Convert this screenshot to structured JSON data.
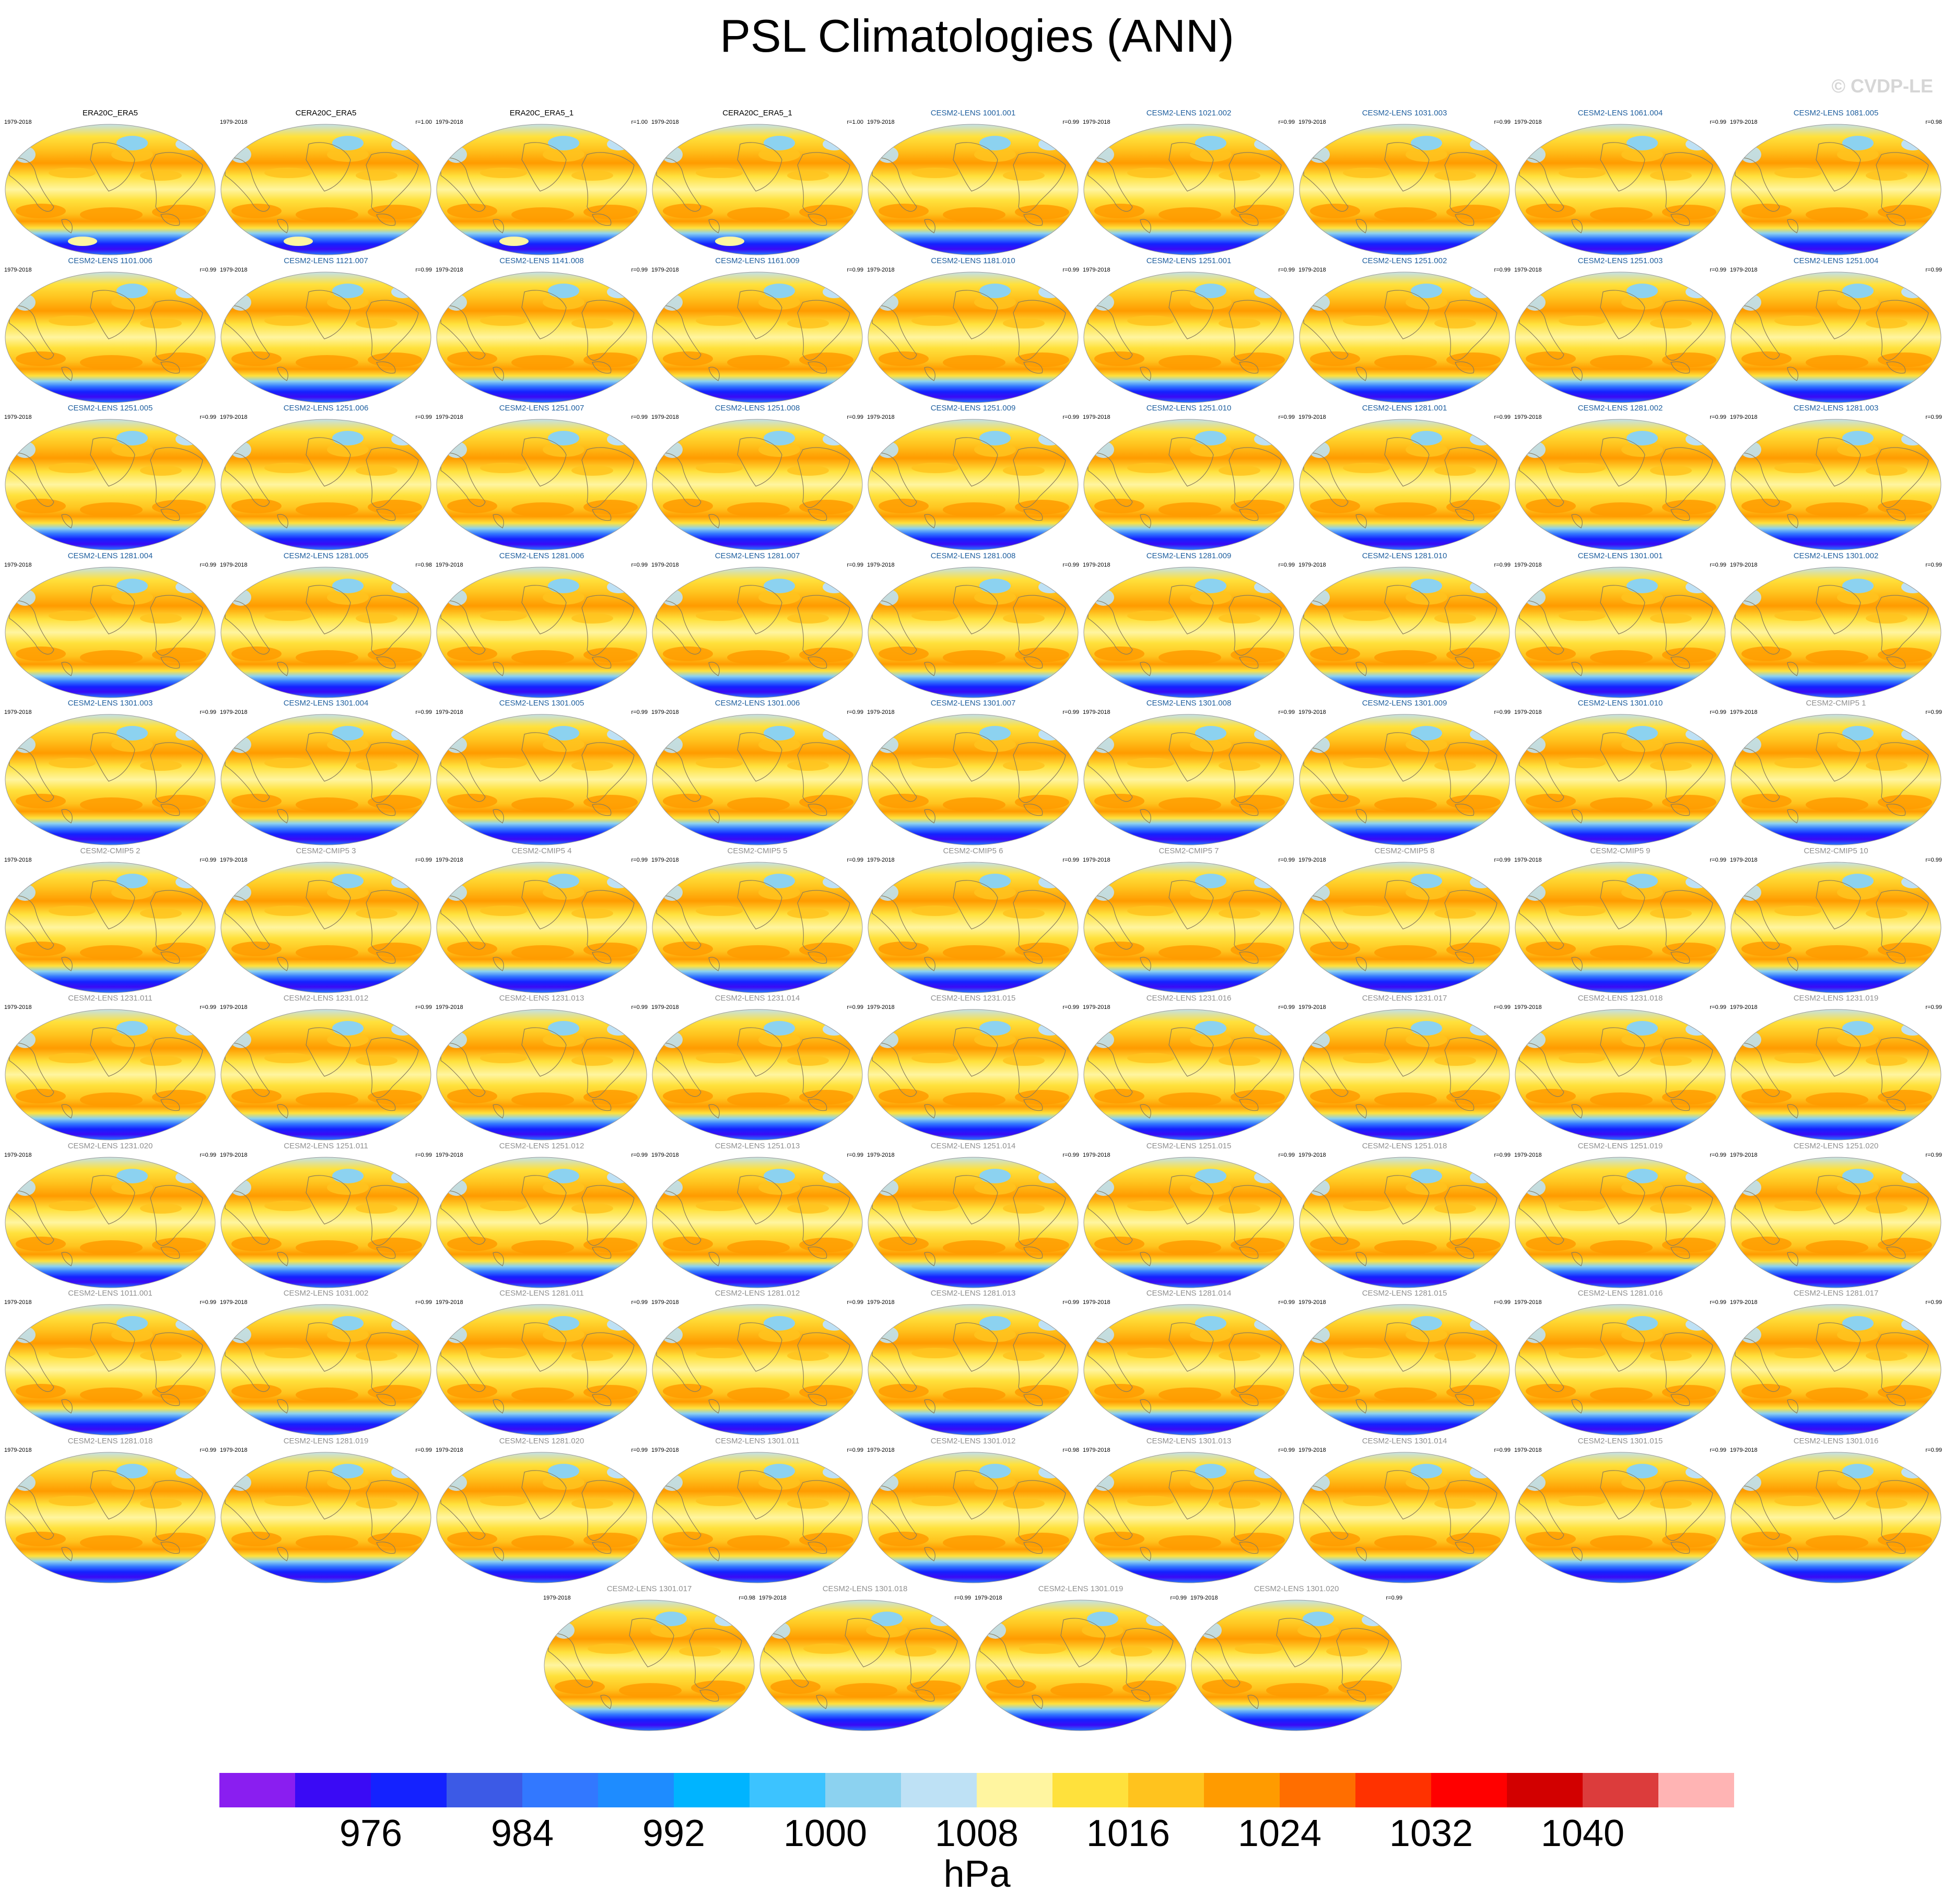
{
  "title": "PSL Climatologies (ANN)",
  "watermark": "© CVDP-LE",
  "period": "1979-2018",
  "colors": {
    "obs_title": "#000000",
    "lens_title": "#1f5f9f",
    "cmip_title": "#909090",
    "land_line": "#8b7d5a",
    "ocean_south": "#2b4bff",
    "ocean_deep": "#1a1aff"
  },
  "panels": [
    {
      "name": "ERA20C_ERA5",
      "corr": "",
      "group": "obs"
    },
    {
      "name": "CERA20C_ERA5",
      "corr": "r=1.00",
      "group": "obs"
    },
    {
      "name": "ERA20C_ERA5_1",
      "corr": "r=1.00",
      "group": "obs"
    },
    {
      "name": "CERA20C_ERA5_1",
      "corr": "r=1.00",
      "group": "obs"
    },
    {
      "name": "CESM2-LENS 1001.001",
      "corr": "r=0.99",
      "group": "lens"
    },
    {
      "name": "CESM2-LENS 1021.002",
      "corr": "r=0.99",
      "group": "lens"
    },
    {
      "name": "CESM2-LENS 1031.003",
      "corr": "r=0.99",
      "group": "lens"
    },
    {
      "name": "CESM2-LENS 1061.004",
      "corr": "r=0.99",
      "group": "lens"
    },
    {
      "name": "CESM2-LENS 1081.005",
      "corr": "r=0.98",
      "group": "lens"
    },
    {
      "name": "CESM2-LENS 1101.006",
      "corr": "r=0.99",
      "group": "lens"
    },
    {
      "name": "CESM2-LENS 1121.007",
      "corr": "r=0.99",
      "group": "lens"
    },
    {
      "name": "CESM2-LENS 1141.008",
      "corr": "r=0.99",
      "group": "lens"
    },
    {
      "name": "CESM2-LENS 1161.009",
      "corr": "r=0.99",
      "group": "lens"
    },
    {
      "name": "CESM2-LENS 1181.010",
      "corr": "r=0.99",
      "group": "lens"
    },
    {
      "name": "CESM2-LENS 1251.001",
      "corr": "r=0.99",
      "group": "lens"
    },
    {
      "name": "CESM2-LENS 1251.002",
      "corr": "r=0.99",
      "group": "lens"
    },
    {
      "name": "CESM2-LENS 1251.003",
      "corr": "r=0.99",
      "group": "lens"
    },
    {
      "name": "CESM2-LENS 1251.004",
      "corr": "r=0.99",
      "group": "lens"
    },
    {
      "name": "CESM2-LENS 1251.005",
      "corr": "r=0.99",
      "group": "lens"
    },
    {
      "name": "CESM2-LENS 1251.006",
      "corr": "r=0.99",
      "group": "lens"
    },
    {
      "name": "CESM2-LENS 1251.007",
      "corr": "r=0.99",
      "group": "lens"
    },
    {
      "name": "CESM2-LENS 1251.008",
      "corr": "r=0.99",
      "group": "lens"
    },
    {
      "name": "CESM2-LENS 1251.009",
      "corr": "r=0.99",
      "group": "lens"
    },
    {
      "name": "CESM2-LENS 1251.010",
      "corr": "r=0.99",
      "group": "lens"
    },
    {
      "name": "CESM2-LENS 1281.001",
      "corr": "r=0.99",
      "group": "lens"
    },
    {
      "name": "CESM2-LENS 1281.002",
      "corr": "r=0.99",
      "group": "lens"
    },
    {
      "name": "CESM2-LENS 1281.003",
      "corr": "r=0.99",
      "group": "lens"
    },
    {
      "name": "CESM2-LENS 1281.004",
      "corr": "r=0.99",
      "group": "lens"
    },
    {
      "name": "CESM2-LENS 1281.005",
      "corr": "r=0.98",
      "group": "lens"
    },
    {
      "name": "CESM2-LENS 1281.006",
      "corr": "r=0.99",
      "group": "lens"
    },
    {
      "name": "CESM2-LENS 1281.007",
      "corr": "r=0.99",
      "group": "lens"
    },
    {
      "name": "CESM2-LENS 1281.008",
      "corr": "r=0.99",
      "group": "lens"
    },
    {
      "name": "CESM2-LENS 1281.009",
      "corr": "r=0.99",
      "group": "lens"
    },
    {
      "name": "CESM2-LENS 1281.010",
      "corr": "r=0.99",
      "group": "lens"
    },
    {
      "name": "CESM2-LENS 1301.001",
      "corr": "r=0.99",
      "group": "lens"
    },
    {
      "name": "CESM2-LENS 1301.002",
      "corr": "r=0.99",
      "group": "lens"
    },
    {
      "name": "CESM2-LENS 1301.003",
      "corr": "r=0.99",
      "group": "lens"
    },
    {
      "name": "CESM2-LENS 1301.004",
      "corr": "r=0.99",
      "group": "lens"
    },
    {
      "name": "CESM2-LENS 1301.005",
      "corr": "r=0.99",
      "group": "lens"
    },
    {
      "name": "CESM2-LENS 1301.006",
      "corr": "r=0.99",
      "group": "lens"
    },
    {
      "name": "CESM2-LENS 1301.007",
      "corr": "r=0.99",
      "group": "lens"
    },
    {
      "name": "CESM2-LENS 1301.008",
      "corr": "r=0.99",
      "group": "lens"
    },
    {
      "name": "CESM2-LENS 1301.009",
      "corr": "r=0.99",
      "group": "lens"
    },
    {
      "name": "CESM2-LENS 1301.010",
      "corr": "r=0.99",
      "group": "lens"
    },
    {
      "name": "CESM2-CMIP5 1",
      "corr": "r=0.99",
      "group": "cmip"
    },
    {
      "name": "CESM2-CMIP5 2",
      "corr": "r=0.99",
      "group": "cmip"
    },
    {
      "name": "CESM2-CMIP5 3",
      "corr": "r=0.99",
      "group": "cmip"
    },
    {
      "name": "CESM2-CMIP5 4",
      "corr": "r=0.99",
      "group": "cmip"
    },
    {
      "name": "CESM2-CMIP5 5",
      "corr": "r=0.99",
      "group": "cmip"
    },
    {
      "name": "CESM2-CMIP5 6",
      "corr": "r=0.99",
      "group": "cmip"
    },
    {
      "name": "CESM2-CMIP5 7",
      "corr": "r=0.99",
      "group": "cmip"
    },
    {
      "name": "CESM2-CMIP5 8",
      "corr": "r=0.99",
      "group": "cmip"
    },
    {
      "name": "CESM2-CMIP5 9",
      "corr": "r=0.99",
      "group": "cmip"
    },
    {
      "name": "CESM2-CMIP5 10",
      "corr": "r=0.99",
      "group": "cmip"
    },
    {
      "name": "CESM2-LENS 1231.011",
      "corr": "r=0.99",
      "group": "cmip"
    },
    {
      "name": "CESM2-LENS 1231.012",
      "corr": "r=0.99",
      "group": "cmip"
    },
    {
      "name": "CESM2-LENS 1231.013",
      "corr": "r=0.99",
      "group": "cmip"
    },
    {
      "name": "CESM2-LENS 1231.014",
      "corr": "r=0.99",
      "group": "cmip"
    },
    {
      "name": "CESM2-LENS 1231.015",
      "corr": "r=0.99",
      "group": "cmip"
    },
    {
      "name": "CESM2-LENS 1231.016",
      "corr": "r=0.99",
      "group": "cmip"
    },
    {
      "name": "CESM2-LENS 1231.017",
      "corr": "r=0.99",
      "group": "cmip"
    },
    {
      "name": "CESM2-LENS 1231.018",
      "corr": "r=0.99",
      "group": "cmip"
    },
    {
      "name": "CESM2-LENS 1231.019",
      "corr": "r=0.99",
      "group": "cmip"
    },
    {
      "name": "CESM2-LENS 1231.020",
      "corr": "r=0.99",
      "group": "cmip"
    },
    {
      "name": "CESM2-LENS 1251.011",
      "corr": "r=0.99",
      "group": "cmip"
    },
    {
      "name": "CESM2-LENS 1251.012",
      "corr": "r=0.99",
      "group": "cmip"
    },
    {
      "name": "CESM2-LENS 1251.013",
      "corr": "r=0.99",
      "group": "cmip"
    },
    {
      "name": "CESM2-LENS 1251.014",
      "corr": "r=0.99",
      "group": "cmip"
    },
    {
      "name": "CESM2-LENS 1251.015",
      "corr": "r=0.99",
      "group": "cmip"
    },
    {
      "name": "CESM2-LENS 1251.018",
      "corr": "r=0.99",
      "group": "cmip"
    },
    {
      "name": "CESM2-LENS 1251.019",
      "corr": "r=0.99",
      "group": "cmip"
    },
    {
      "name": "CESM2-LENS 1251.020",
      "corr": "r=0.99",
      "group": "cmip"
    },
    {
      "name": "CESM2-LENS 1011.001",
      "corr": "r=0.99",
      "group": "cmip"
    },
    {
      "name": "CESM2-LENS 1031.002",
      "corr": "r=0.99",
      "group": "cmip"
    },
    {
      "name": "CESM2-LENS 1281.011",
      "corr": "r=0.99",
      "group": "cmip"
    },
    {
      "name": "CESM2-LENS 1281.012",
      "corr": "r=0.99",
      "group": "cmip"
    },
    {
      "name": "CESM2-LENS 1281.013",
      "corr": "r=0.99",
      "group": "cmip"
    },
    {
      "name": "CESM2-LENS 1281.014",
      "corr": "r=0.99",
      "group": "cmip"
    },
    {
      "name": "CESM2-LENS 1281.015",
      "corr": "r=0.99",
      "group": "cmip"
    },
    {
      "name": "CESM2-LENS 1281.016",
      "corr": "r=0.99",
      "group": "cmip"
    },
    {
      "name": "CESM2-LENS 1281.017",
      "corr": "r=0.99",
      "group": "cmip"
    },
    {
      "name": "CESM2-LENS 1281.018",
      "corr": "r=0.99",
      "group": "cmip"
    },
    {
      "name": "CESM2-LENS 1281.019",
      "corr": "r=0.99",
      "group": "cmip"
    },
    {
      "name": "CESM2-LENS 1281.020",
      "corr": "r=0.99",
      "group": "cmip"
    },
    {
      "name": "CESM2-LENS 1301.011",
      "corr": "r=0.99",
      "group": "cmip"
    },
    {
      "name": "CESM2-LENS 1301.012",
      "corr": "r=0.98",
      "group": "cmip"
    },
    {
      "name": "CESM2-LENS 1301.013",
      "corr": "r=0.99",
      "group": "cmip"
    },
    {
      "name": "CESM2-LENS 1301.014",
      "corr": "r=0.99",
      "group": "cmip"
    },
    {
      "name": "CESM2-LENS 1301.015",
      "corr": "r=0.99",
      "group": "cmip"
    },
    {
      "name": "CESM2-LENS 1301.016",
      "corr": "r=0.99",
      "group": "cmip"
    },
    {
      "name": "CESM2-LENS 1301.017",
      "corr": "r=0.98",
      "group": "cmip"
    },
    {
      "name": "CESM2-LENS 1301.018",
      "corr": "r=0.99",
      "group": "cmip"
    },
    {
      "name": "CESM2-LENS 1301.019",
      "corr": "r=0.99",
      "group": "cmip"
    },
    {
      "name": "CESM2-LENS 1301.020",
      "corr": "r=0.99",
      "group": "cmip"
    }
  ],
  "colorbar": {
    "colors": [
      "#8a1ef0",
      "#3a0af5",
      "#1422ff",
      "#3c5ae6",
      "#3278ff",
      "#1e8cff",
      "#00b4ff",
      "#3cc3ff",
      "#8cd2f0",
      "#bee1f5",
      "#fff5a0",
      "#ffe13c",
      "#ffc31e",
      "#ff9b00",
      "#ff6e00",
      "#ff3200",
      "#ff0000",
      "#d20000",
      "#dc3c3c",
      "#ffb4b4"
    ],
    "labels": [
      "976",
      "984",
      "992",
      "1000",
      "1008",
      "1016",
      "1024",
      "1032",
      "1040"
    ],
    "units": "hPa"
  }
}
